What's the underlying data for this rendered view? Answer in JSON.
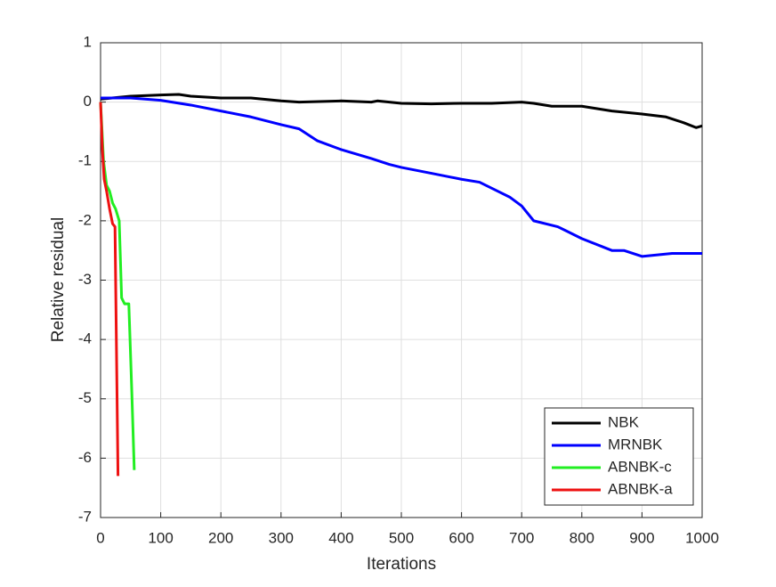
{
  "chart_data": {
    "type": "line",
    "xlabel": "Iterations",
    "ylabel": "Relative residual",
    "xlim": [
      0,
      1000
    ],
    "xticks": [
      0,
      100,
      200,
      300,
      400,
      500,
      600,
      700,
      800,
      900,
      1000
    ],
    "ylim": [
      -7,
      1
    ],
    "yticks": [
      -7,
      -6,
      -5,
      -4,
      -3,
      -2,
      -1,
      0,
      1
    ],
    "grid": true,
    "legend": "lower right",
    "series": [
      {
        "name": "NBK",
        "color": "#000000",
        "x": [
          0,
          50,
          100,
          130,
          150,
          200,
          250,
          300,
          330,
          400,
          450,
          460,
          500,
          550,
          600,
          650,
          700,
          720,
          750,
          800,
          850,
          900,
          940,
          970,
          990,
          1000
        ],
        "values": [
          0.05,
          0.1,
          0.12,
          0.13,
          0.1,
          0.07,
          0.07,
          0.02,
          0,
          0.02,
          0,
          0.02,
          -0.02,
          -0.03,
          -0.02,
          -0.02,
          0,
          -0.02,
          -0.07,
          -0.07,
          -0.15,
          -0.2,
          -0.25,
          -0.35,
          -0.43,
          -0.4
        ]
      },
      {
        "name": "MRNBK",
        "color": "#0000ff",
        "x": [
          0,
          50,
          100,
          150,
          200,
          250,
          300,
          330,
          360,
          400,
          450,
          480,
          500,
          550,
          600,
          630,
          660,
          680,
          700,
          720,
          760,
          800,
          850,
          870,
          900,
          950,
          1000
        ],
        "values": [
          0.07,
          0.07,
          0.03,
          -0.05,
          -0.15,
          -0.25,
          -0.38,
          -0.45,
          -0.65,
          -0.8,
          -0.95,
          -1.05,
          -1.1,
          -1.2,
          -1.3,
          -1.35,
          -1.5,
          -1.6,
          -1.75,
          -2.0,
          -2.1,
          -2.3,
          -2.5,
          -2.5,
          -2.6,
          -2.55,
          -2.55
        ]
      },
      {
        "name": "ABNBK-c",
        "color": "#22ee22",
        "x": [
          0,
          5,
          10,
          15,
          20,
          25,
          31,
          35,
          40,
          47,
          52,
          56
        ],
        "values": [
          0,
          -1.0,
          -1.4,
          -1.5,
          -1.7,
          -1.8,
          -2.0,
          -3.3,
          -3.4,
          -3.4,
          -4.9,
          -6.2
        ]
      },
      {
        "name": "ABNBK-a",
        "color": "#ee1111",
        "x": [
          0,
          3,
          6,
          10,
          15,
          20,
          24,
          29
        ],
        "values": [
          0,
          -0.8,
          -1.3,
          -1.5,
          -1.8,
          -2.05,
          -2.1,
          -6.3
        ]
      }
    ]
  }
}
